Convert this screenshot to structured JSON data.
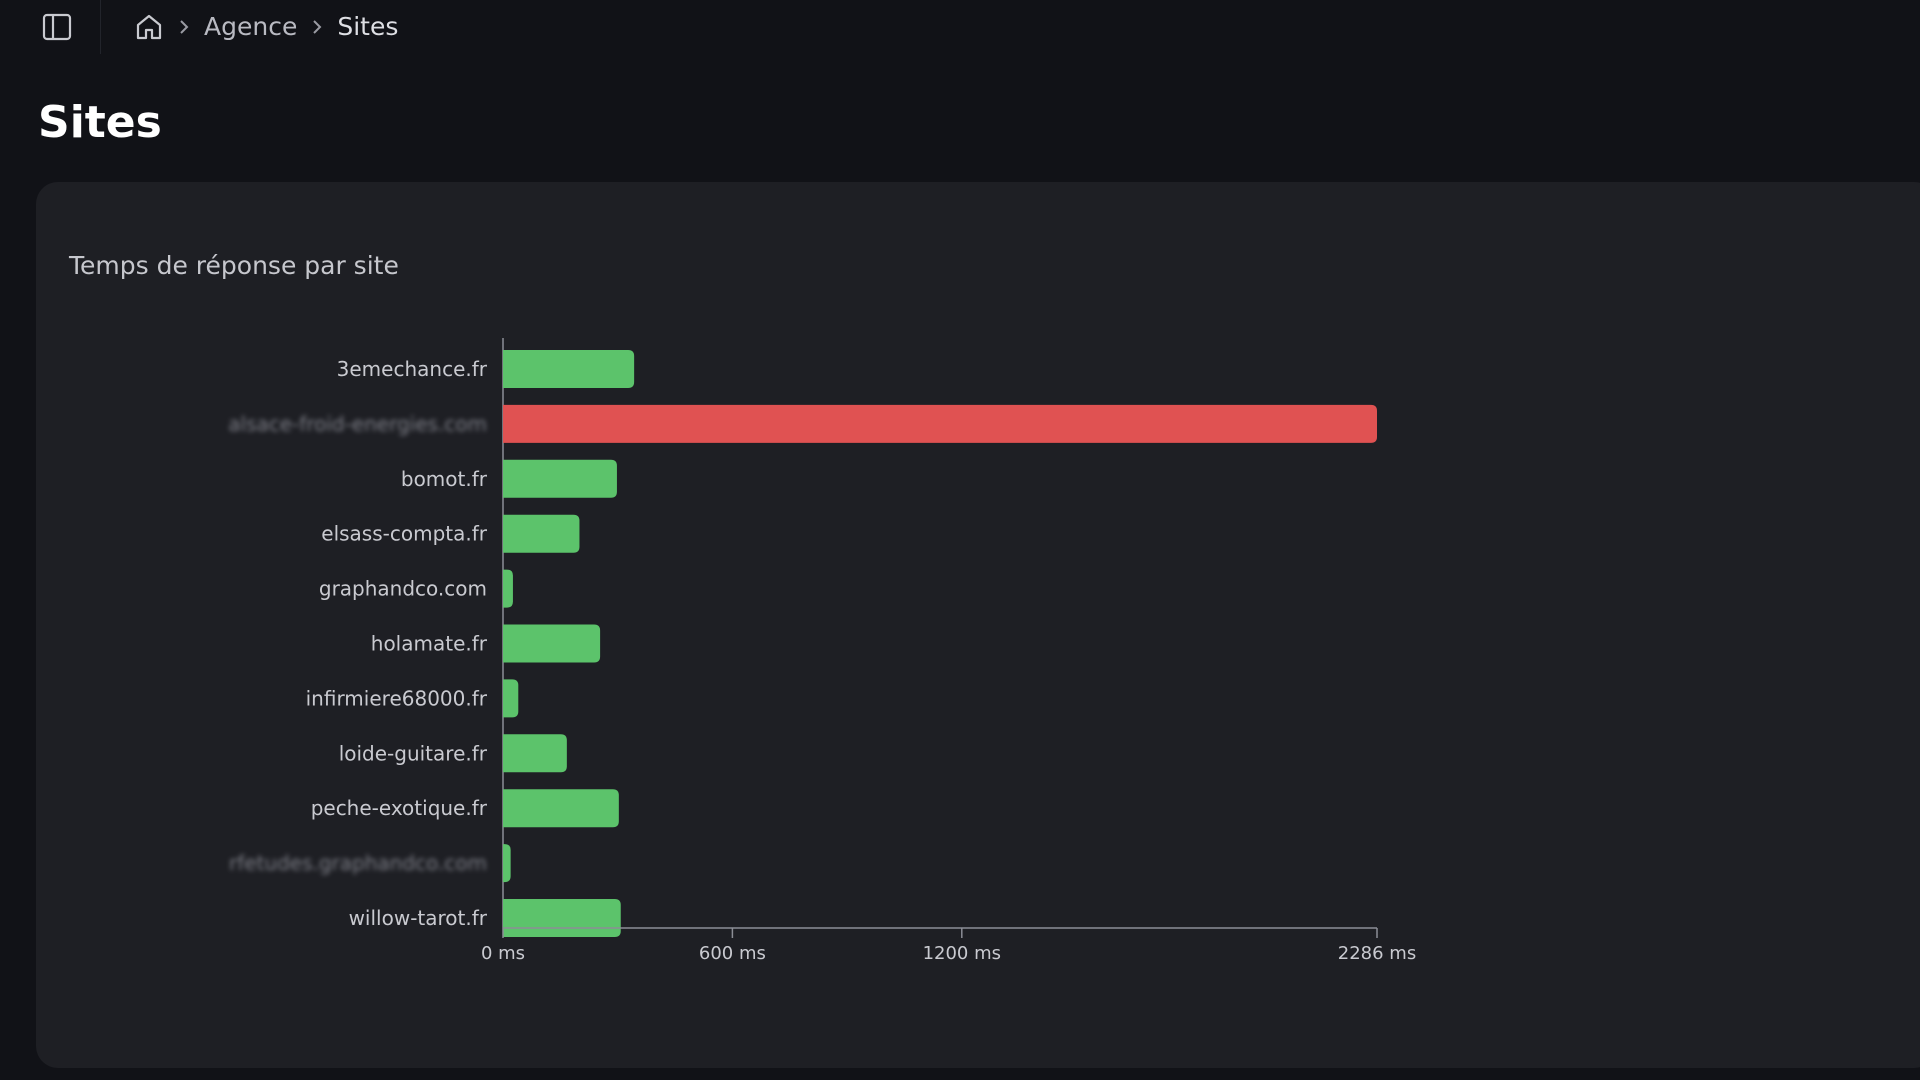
{
  "breadcrumb": {
    "items": [
      "Agence",
      "Sites"
    ]
  },
  "page": {
    "title": "Sites"
  },
  "card": {
    "title": "Temps de réponse par site"
  },
  "icons": {
    "sidebar_toggle": "sidebar-panel-icon",
    "home": "home-icon",
    "separator": "chevron-right-icon"
  },
  "colors": {
    "ok": "#5cc36b",
    "slow": "#e05252",
    "background": "#111217",
    "card": "#1e1f24"
  },
  "chart_data": {
    "type": "bar",
    "orientation": "horizontal",
    "title": "Temps de réponse par site",
    "unit": "ms",
    "categories": [
      "3emechance.fr",
      "alsace-froid-energies.com",
      "bomot.fr",
      "elsass-compta.fr",
      "graphandco.com",
      "holamate.fr",
      "infirmiere68000.fr",
      "loide-guitare.fr",
      "peche-exotique.fr",
      "rfetudes.graphandco.com",
      "willow-tarot.fr"
    ],
    "values": [
      343,
      2286,
      298,
      200,
      26,
      254,
      40,
      167,
      303,
      20,
      308
    ],
    "status": [
      "ok",
      "slow",
      "ok",
      "ok",
      "ok",
      "ok",
      "ok",
      "ok",
      "ok",
      "ok",
      "ok"
    ],
    "blurred": [
      false,
      true,
      false,
      false,
      false,
      false,
      false,
      false,
      false,
      true,
      false
    ],
    "xticks": [
      0,
      600,
      1200,
      2286
    ],
    "xtick_labels": [
      "0 ms",
      "600 ms",
      "1200 ms",
      "2286 ms"
    ],
    "xlim": [
      0,
      2286
    ],
    "grid": false,
    "legend": "none"
  }
}
